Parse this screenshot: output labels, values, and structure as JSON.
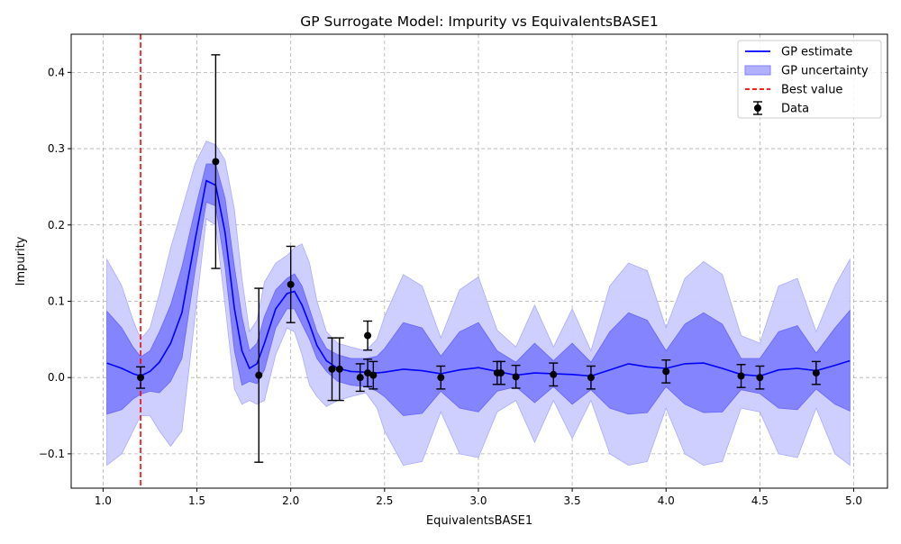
{
  "chart_data": {
    "type": "line",
    "title": "GP Surrogate Model: Impurity vs EquivalentsBASE1",
    "xlabel": "EquivalentsBASE1",
    "ylabel": "Impurity",
    "xlim": [
      0.83,
      5.18
    ],
    "ylim": [
      -0.145,
      0.45
    ],
    "xticks": [
      1.0,
      1.5,
      2.0,
      2.5,
      3.0,
      3.5,
      4.0,
      4.5,
      5.0
    ],
    "xtick_labels": [
      "1.0",
      "1.5",
      "2.0",
      "2.5",
      "3.0",
      "3.5",
      "4.0",
      "4.5",
      "5.0"
    ],
    "yticks": [
      -0.1,
      0.0,
      0.1,
      0.2,
      0.3,
      0.4
    ],
    "ytick_labels": [
      "−0.1",
      "0.0",
      "0.1",
      "0.2",
      "0.3",
      "0.4"
    ],
    "grid": true,
    "legend_position": "top-right",
    "legend": [
      {
        "label": "GP estimate",
        "kind": "line",
        "color": "#0000ff"
      },
      {
        "label": "GP uncertainty",
        "kind": "patch",
        "color": "#6666ff"
      },
      {
        "label": "Best value",
        "kind": "dashed",
        "color": "#ff0000"
      },
      {
        "label": "Data",
        "kind": "errorbar",
        "color": "#000000"
      }
    ],
    "best_value_x": 1.2,
    "gp": {
      "x": [
        1.02,
        1.1,
        1.16,
        1.2,
        1.25,
        1.3,
        1.36,
        1.42,
        1.49,
        1.55,
        1.6,
        1.65,
        1.7,
        1.74,
        1.78,
        1.82,
        1.86,
        1.92,
        1.98,
        2.02,
        2.06,
        2.1,
        2.14,
        2.19,
        2.25,
        2.32,
        2.4,
        2.46,
        2.5,
        2.6,
        2.7,
        2.8,
        2.9,
        3.0,
        3.1,
        3.2,
        3.3,
        3.4,
        3.5,
        3.6,
        3.7,
        3.8,
        3.9,
        4.0,
        4.1,
        4.2,
        4.3,
        4.4,
        4.5,
        4.6,
        4.7,
        4.8,
        4.9,
        4.98
      ],
      "mean": [
        0.019,
        0.012,
        0.005,
        0.002,
        0.008,
        0.02,
        0.045,
        0.085,
        0.18,
        0.258,
        0.252,
        0.19,
        0.09,
        0.035,
        0.012,
        0.018,
        0.045,
        0.09,
        0.11,
        0.113,
        0.095,
        0.07,
        0.042,
        0.022,
        0.012,
        0.008,
        0.007,
        0.006,
        0.007,
        0.011,
        0.009,
        0.005,
        0.01,
        0.013,
        0.008,
        0.003,
        0.006,
        0.005,
        0.004,
        0.002,
        0.01,
        0.018,
        0.014,
        0.012,
        0.018,
        0.019,
        0.012,
        0.004,
        0.002,
        0.01,
        0.012,
        0.009,
        0.016,
        0.022
      ],
      "inner_upper": [
        0.087,
        0.065,
        0.04,
        0.027,
        0.035,
        0.06,
        0.095,
        0.145,
        0.22,
        0.28,
        0.28,
        0.235,
        0.145,
        0.08,
        0.035,
        0.045,
        0.08,
        0.115,
        0.13,
        0.136,
        0.12,
        0.09,
        0.06,
        0.038,
        0.03,
        0.025,
        0.025,
        0.028,
        0.038,
        0.072,
        0.065,
        0.028,
        0.06,
        0.072,
        0.035,
        0.02,
        0.045,
        0.022,
        0.045,
        0.02,
        0.06,
        0.085,
        0.075,
        0.035,
        0.07,
        0.085,
        0.07,
        0.025,
        0.025,
        0.06,
        0.068,
        0.032,
        0.065,
        0.088
      ],
      "inner_lower": [
        -0.048,
        -0.042,
        -0.028,
        -0.022,
        -0.018,
        -0.02,
        -0.005,
        0.025,
        0.14,
        0.23,
        0.225,
        0.145,
        0.035,
        -0.01,
        -0.005,
        -0.008,
        0.01,
        0.065,
        0.09,
        0.09,
        0.07,
        0.05,
        0.025,
        0.008,
        -0.005,
        -0.01,
        -0.012,
        -0.018,
        -0.025,
        -0.05,
        -0.047,
        -0.018,
        -0.04,
        -0.045,
        -0.018,
        -0.012,
        -0.033,
        -0.012,
        -0.035,
        -0.016,
        -0.04,
        -0.048,
        -0.046,
        -0.012,
        -0.035,
        -0.046,
        -0.045,
        -0.016,
        -0.021,
        -0.04,
        -0.042,
        -0.015,
        -0.035,
        -0.044
      ],
      "outer_upper": [
        0.155,
        0.12,
        0.075,
        0.05,
        0.065,
        0.11,
        0.17,
        0.22,
        0.28,
        0.31,
        0.305,
        0.285,
        0.22,
        0.13,
        0.06,
        0.075,
        0.125,
        0.15,
        0.16,
        0.17,
        0.175,
        0.15,
        0.1,
        0.06,
        0.045,
        0.04,
        0.035,
        0.05,
        0.08,
        0.135,
        0.12,
        0.052,
        0.115,
        0.132,
        0.062,
        0.04,
        0.095,
        0.04,
        0.09,
        0.035,
        0.12,
        0.15,
        0.14,
        0.065,
        0.13,
        0.152,
        0.135,
        0.055,
        0.045,
        0.12,
        0.13,
        0.06,
        0.12,
        0.155
      ],
      "outer_lower": [
        -0.115,
        -0.1,
        -0.07,
        -0.05,
        -0.05,
        -0.07,
        -0.09,
        -0.07,
        0.08,
        0.208,
        0.2,
        0.095,
        -0.015,
        -0.035,
        -0.03,
        -0.035,
        -0.03,
        0.03,
        0.065,
        0.06,
        0.03,
        -0.01,
        -0.025,
        -0.038,
        -0.03,
        -0.025,
        -0.02,
        -0.04,
        -0.07,
        -0.115,
        -0.11,
        -0.045,
        -0.1,
        -0.105,
        -0.045,
        -0.03,
        -0.085,
        -0.03,
        -0.08,
        -0.03,
        -0.1,
        -0.115,
        -0.11,
        -0.04,
        -0.1,
        -0.115,
        -0.11,
        -0.04,
        -0.045,
        -0.1,
        -0.105,
        -0.04,
        -0.1,
        -0.115
      ]
    },
    "data_points": [
      {
        "x": 1.2,
        "y": 0.0,
        "yerr": 0.014
      },
      {
        "x": 1.6,
        "y": 0.283,
        "yerr": 0.14
      },
      {
        "x": 1.83,
        "y": 0.003,
        "yerr": 0.114
      },
      {
        "x": 2.0,
        "y": 0.122,
        "yerr": 0.05
      },
      {
        "x": 2.22,
        "y": 0.011,
        "yerr": 0.041
      },
      {
        "x": 2.26,
        "y": 0.011,
        "yerr": 0.041
      },
      {
        "x": 2.37,
        "y": 0.0,
        "yerr": 0.018
      },
      {
        "x": 2.41,
        "y": 0.055,
        "yerr": 0.019
      },
      {
        "x": 2.41,
        "y": 0.006,
        "yerr": 0.018
      },
      {
        "x": 2.44,
        "y": 0.003,
        "yerr": 0.018
      },
      {
        "x": 2.8,
        "y": 0.0,
        "yerr": 0.015
      },
      {
        "x": 3.1,
        "y": 0.006,
        "yerr": 0.015
      },
      {
        "x": 3.12,
        "y": 0.006,
        "yerr": 0.015
      },
      {
        "x": 3.2,
        "y": 0.001,
        "yerr": 0.015
      },
      {
        "x": 3.4,
        "y": 0.004,
        "yerr": 0.015
      },
      {
        "x": 3.6,
        "y": 0.0,
        "yerr": 0.015
      },
      {
        "x": 4.0,
        "y": 0.008,
        "yerr": 0.015
      },
      {
        "x": 4.4,
        "y": 0.002,
        "yerr": 0.015
      },
      {
        "x": 4.5,
        "y": 0.0,
        "yerr": 0.015
      },
      {
        "x": 4.8,
        "y": 0.006,
        "yerr": 0.015
      }
    ],
    "colors": {
      "gp_line": "#0000ff",
      "inner_band": "#8080ff",
      "outer_band": "#ccccff",
      "best": "#ff0000",
      "data": "#000000",
      "grid": "#b0b0b0"
    }
  }
}
